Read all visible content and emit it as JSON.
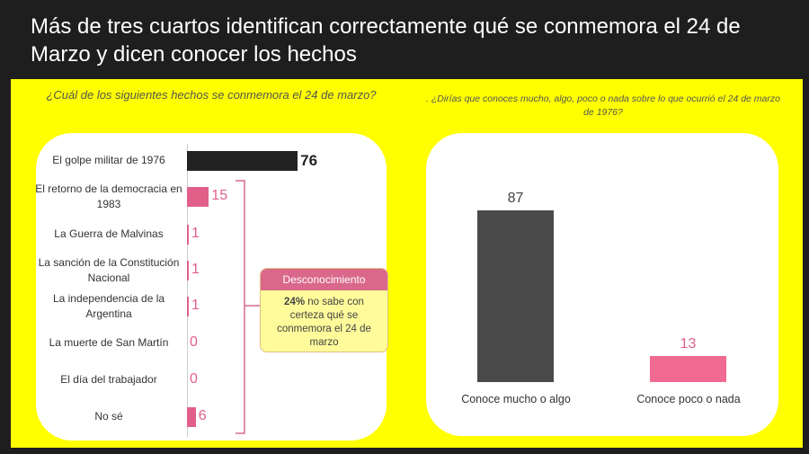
{
  "title": "Más de tres cuartos identifican correctamente qué se conmemora el 24 de Marzo y dicen conocer los hechos",
  "colors": {
    "background": "#ffff00",
    "dark": "#222222",
    "pink": "#e0608a",
    "gray": "#4a4a4a"
  },
  "chart_data": [
    {
      "type": "bar",
      "orientation": "horizontal",
      "title": "¿Cuál de los siguientes hechos se conmemora el 24 de marzo?",
      "categories": [
        "El golpe militar de 1976",
        "El retorno de la democracia en 1983",
        "La Guerra de Malvinas",
        "La sanción de la Constitución Nacional",
        "La independencia de la Argentina",
        "La muerte de San Martín",
        "El día del trabajador",
        "No sé"
      ],
      "values": [
        76,
        15,
        1,
        1,
        1,
        0,
        0,
        6
      ],
      "value_labels": [
        "76",
        "15",
        "1",
        "1",
        "1",
        "0",
        "0",
        "6"
      ],
      "bar_colors": [
        "#222222",
        "#e0608a",
        "#e0608a",
        "#e0608a",
        "#e0608a",
        "#e0608a",
        "#e0608a",
        "#e0608a"
      ],
      "annotation": {
        "header": "Desconocimiento",
        "strong": "24%",
        "text": " no sabe con certeza qué se conmemora el 24 de marzo"
      }
    },
    {
      "type": "bar",
      "title": ". ¿Dirías que conoces mucho, algo, poco o nada sobre lo que ocurrió el 24 de marzo de 1976?",
      "categories": [
        "Conoce mucho o algo",
        "Conoce poco o nada"
      ],
      "values": [
        87,
        13
      ],
      "value_labels": [
        "87",
        "13"
      ],
      "bar_colors": [
        "#4a4a4a",
        "#f06a92"
      ]
    }
  ]
}
